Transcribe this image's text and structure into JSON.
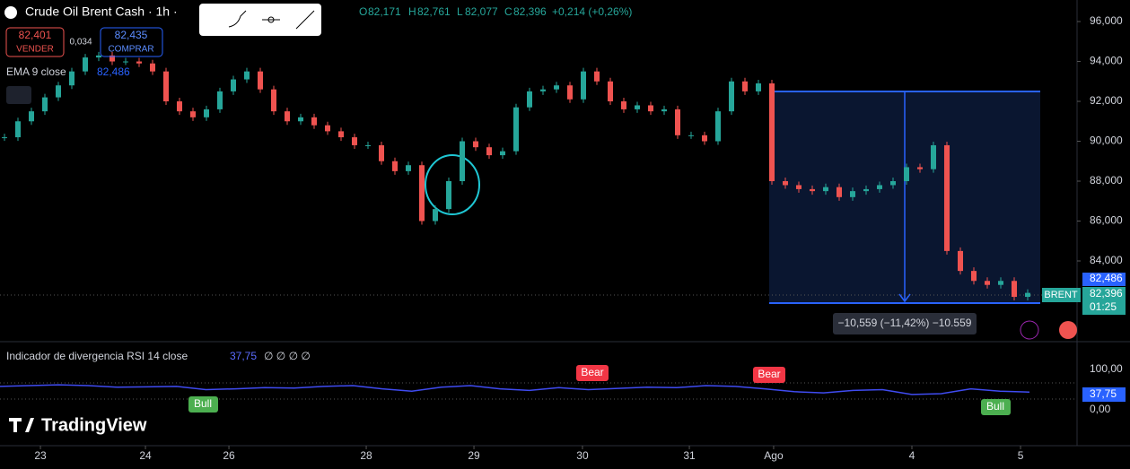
{
  "header": {
    "symbol": "Crude Oil Brent Cash · 1h ·",
    "o_label": "O",
    "o": "82,171",
    "h_label": "H",
    "h": "82,761",
    "l_label": "L",
    "l": "82,077",
    "c_label": "C",
    "c": "82,396",
    "change": "+0,214 (+0,26%)"
  },
  "trade": {
    "sell": "82,401",
    "sell_label": "VENDER",
    "spread": "0,034",
    "buy": "82,435",
    "buy_label": "COMPRAR"
  },
  "ema_legend": {
    "name": "EMA 9 close",
    "value": "82,486"
  },
  "rsi_legend": {
    "name": "Indicador de divergencia RSI 14 close",
    "value": "37,75",
    "extras": "∅ ∅ ∅ ∅"
  },
  "price_tags": {
    "ema": "82,486",
    "last": "82,396",
    "timer": "01:25",
    "symbol": "BRENT"
  },
  "measure": "−10,559 (−11,42%) −10.559",
  "rsi_axis": {
    "top": "100,00",
    "bottom": "0,00",
    "value": "37,75"
  },
  "rsi_tags": [
    "Bear",
    "Bear",
    "Bull",
    "Bull"
  ],
  "logo": "TradingView",
  "chart_data": {
    "type": "candle",
    "up_color": "#26a69a",
    "down_color": "#ef5350",
    "values": [
      90.2,
      91,
      91.5,
      92.2,
      92.8,
      93.5,
      94.2,
      94.3,
      94,
      94,
      93.9,
      93.5,
      92,
      91.5,
      91.2,
      91.6,
      92.5,
      93.1,
      93.5,
      92.6,
      91.5,
      91,
      91.2,
      90.8,
      90.5,
      90.2,
      89.8,
      89.8,
      89,
      88.5,
      88.8,
      86,
      86.6,
      88,
      90,
      89.7,
      89.3,
      89.5,
      91.7,
      92.5,
      92.6,
      92.8,
      92.1,
      93.5,
      93,
      92,
      91.6,
      91.8,
      91.5,
      91.6,
      90.3,
      90.3,
      90,
      91.5,
      93,
      92.5,
      92.9,
      88,
      87.8,
      87.6,
      87.5,
      87.7,
      87.2,
      87.5,
      87.6,
      87.8,
      88,
      88.7,
      88.6,
      89.8,
      84.5,
      83.5,
      83,
      82.8,
      83,
      82.2,
      82.4
    ],
    "ylim": [
      80,
      97.08
    ],
    "yticks": [
      {
        "value": 84,
        "label": "84,000"
      },
      {
        "value": 86,
        "label": "86,000"
      },
      {
        "value": 88,
        "label": "88,000"
      },
      {
        "value": 90,
        "label": "90,000"
      },
      {
        "value": 92,
        "label": "92,000"
      },
      {
        "value": 94,
        "label": "94,000"
      },
      {
        "value": 96,
        "label": "96,000"
      }
    ],
    "xticks": [
      {
        "value": 2.67,
        "label": "23"
      },
      {
        "value": 10.47,
        "label": "24"
      },
      {
        "value": 16.67,
        "label": "26"
      },
      {
        "value": 26.87,
        "label": "28"
      },
      {
        "value": 34.87,
        "label": "29"
      },
      {
        "value": 42.93,
        "label": "30"
      },
      {
        "value": 50.87,
        "label": "31"
      },
      {
        "value": 57.13,
        "label": "Ago"
      },
      {
        "value": 67.4,
        "label": "4"
      },
      {
        "value": 75.47,
        "label": "5"
      }
    ],
    "rsi": {
      "values": [
        58,
        60,
        62,
        60,
        56,
        57,
        58,
        50,
        52,
        55,
        54,
        58,
        60,
        52,
        46,
        56,
        60,
        52,
        48,
        55,
        50,
        53,
        56,
        55,
        60,
        58,
        52,
        45,
        42,
        48,
        50,
        38,
        40,
        52,
        46,
        44
      ],
      "ylim": [
        0,
        100
      ],
      "color": "#3f4bf0"
    }
  }
}
